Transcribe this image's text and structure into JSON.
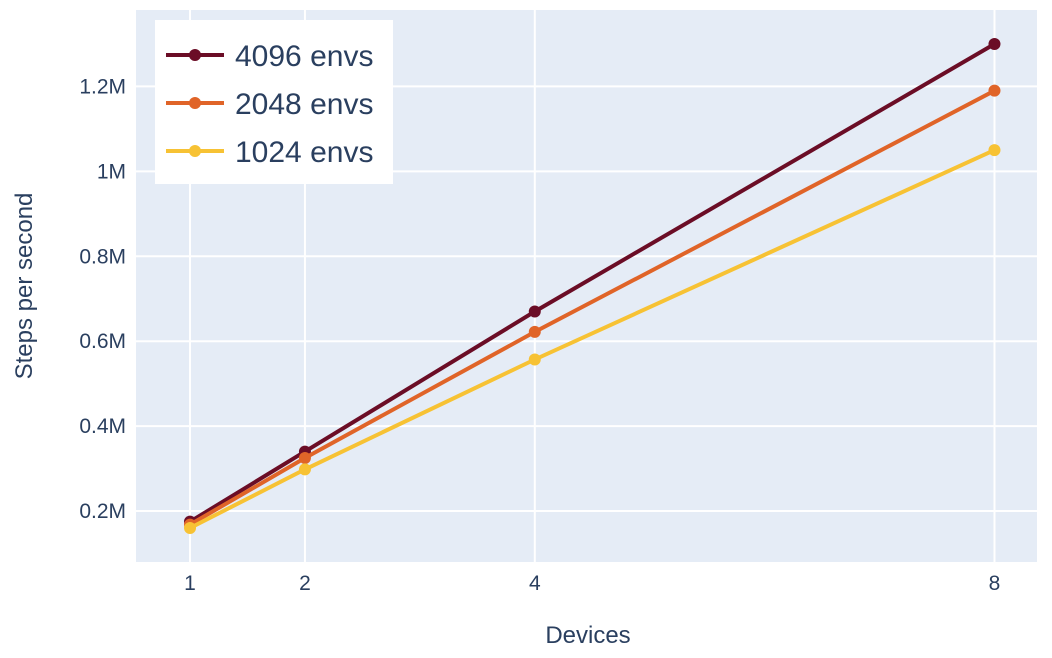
{
  "chart_data": {
    "type": "line",
    "xlabel": "Devices",
    "ylabel": "Steps per second",
    "x": [
      1,
      2,
      4,
      8
    ],
    "x_tick_labels": [
      "1",
      "2",
      "4",
      "8"
    ],
    "xlim": [
      0.53,
      8.37
    ],
    "ylim": [
      0.08,
      1.38
    ],
    "y_ticks": [
      0.2,
      0.4,
      0.6,
      0.8,
      1.0,
      1.2
    ],
    "y_tick_labels": [
      "0.2M",
      "0.4M",
      "0.6M",
      "0.8M",
      "1M",
      "1.2M"
    ],
    "y_unit": "millions of steps per second",
    "grid": true,
    "legend_position": "top-left",
    "background_color": "#e5ecf6",
    "series": [
      {
        "name": "4096 envs",
        "color": "#6b0d26",
        "values": [
          0.175,
          0.34,
          0.67,
          1.3
        ]
      },
      {
        "name": "2048 envs",
        "color": "#e06428",
        "values": [
          0.168,
          0.325,
          0.622,
          1.19
        ]
      },
      {
        "name": "1024 envs",
        "color": "#f7c234",
        "values": [
          0.16,
          0.298,
          0.557,
          1.05
        ]
      }
    ]
  }
}
